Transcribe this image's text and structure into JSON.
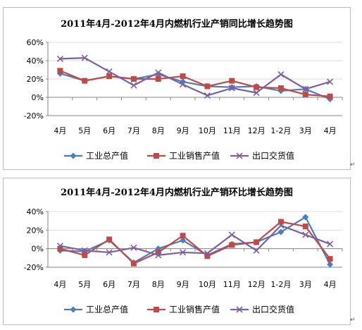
{
  "colors": {
    "industrial_output": "#4a7ebb",
    "industrial_sales": "#be4b48",
    "export_delivery": "#7d60a0",
    "axis": "#868686",
    "grid": "#d9d9d9"
  },
  "chart_data": [
    {
      "type": "line",
      "title": "2011年4月-2012年4月内燃机行业产销同比增长趋势图",
      "categories": [
        "4月",
        "5月",
        "6月",
        "7月",
        "8月",
        "9月",
        "10月",
        "11月",
        "12月",
        "1-2月",
        "3月",
        "4月"
      ],
      "y_ticks": [
        "60%",
        "40%",
        "20%",
        "0%",
        "-20%"
      ],
      "ylim": [
        -20,
        60
      ],
      "grid": true,
      "legend_position": "bottom",
      "series": [
        {
          "name": "工业总产值",
          "marker": "diamond",
          "values": [
            26,
            18,
            23,
            20,
            25,
            17,
            12,
            11,
            12,
            7,
            9,
            -2
          ]
        },
        {
          "name": "工业销售产值",
          "marker": "square",
          "values": [
            29,
            18,
            23,
            20,
            20,
            23,
            12,
            18,
            11,
            10,
            3,
            1
          ]
        },
        {
          "name": "出口交货值",
          "marker": "x",
          "values": [
            42,
            43,
            28,
            13,
            27,
            14,
            2,
            10,
            5,
            25,
            9,
            17
          ]
        }
      ]
    },
    {
      "type": "line",
      "title": "2011年4月-2012年4月内燃机行业产销环比增长趋势图",
      "categories": [
        "4月",
        "5月",
        "6月",
        "7月",
        "8月",
        "9月",
        "10月",
        "11月",
        "12月",
        "1-2月",
        "3月",
        "4月"
      ],
      "y_ticks": [
        "40%",
        "20%",
        "0%",
        "-20%"
      ],
      "ylim": [
        -20,
        40
      ],
      "grid": true,
      "legend_position": "bottom",
      "series": [
        {
          "name": "工业总产值",
          "marker": "diamond",
          "values": [
            -2,
            -3,
            9,
            -15,
            0,
            9,
            -7,
            5,
            7,
            18,
            34,
            -17
          ]
        },
        {
          "name": "工业销售产值",
          "marker": "square",
          "values": [
            0,
            -7,
            10,
            -16,
            -4,
            14,
            -8,
            4,
            7,
            29,
            24,
            -11
          ]
        },
        {
          "name": "出口交货值",
          "marker": "x",
          "values": [
            3,
            -2,
            -4,
            1,
            -7,
            -4,
            -5,
            15,
            -2,
            25,
            15,
            5
          ]
        }
      ]
    }
  ]
}
